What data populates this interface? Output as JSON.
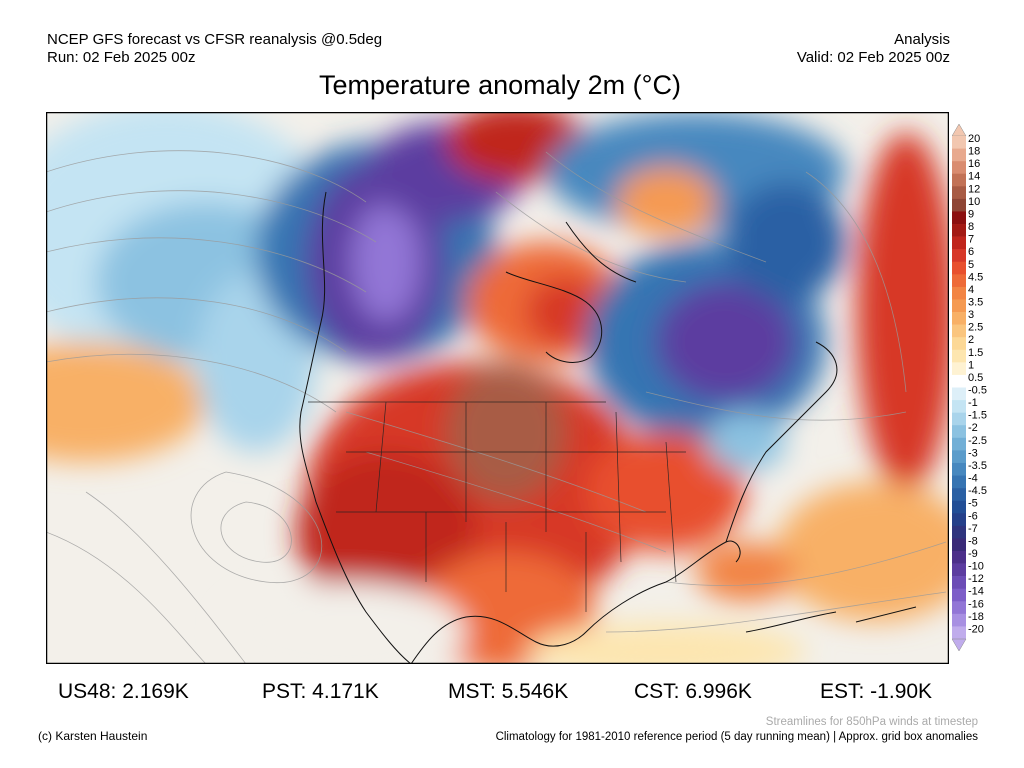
{
  "header": {
    "line1_left": "NCEP GFS forecast vs CFSR reanalysis @0.5deg",
    "line2_left": "Run: 02 Feb 2025 00z",
    "line1_right": "Analysis",
    "line2_right": "Valid: 02 Feb 2025 00z"
  },
  "title": "Temperature anomaly 2m (°C)",
  "colorbar": {
    "labels": [
      "20",
      "18",
      "16",
      "14",
      "12",
      "10",
      "9",
      "8",
      "7",
      "6",
      "5",
      "4.5",
      "4",
      "3.5",
      "3",
      "2.5",
      "2",
      "1.5",
      "1",
      "0.5",
      "-0.5",
      "-1",
      "-1.5",
      "-2",
      "-2.5",
      "-3",
      "-3.5",
      "-4",
      "-4.5",
      "-5",
      "-6",
      "-7",
      "-8",
      "-9",
      "-10",
      "-12",
      "-14",
      "-16",
      "-18",
      "-20"
    ],
    "colors": [
      "#f2c7b0",
      "#e8a98e",
      "#d98c70",
      "#c27256",
      "#a85b44",
      "#8f4535",
      "#8b1010",
      "#a31a14",
      "#c0251c",
      "#d73828",
      "#e8502e",
      "#ee6a38",
      "#f28444",
      "#f59a52",
      "#f8b066",
      "#fac57e",
      "#fcd896",
      "#fde6b0",
      "#fef2d2",
      "#ffffff",
      "#ddeff8",
      "#c4e4f3",
      "#a9d4eb",
      "#8cc2e1",
      "#72afd6",
      "#5b9ccb",
      "#4788bf",
      "#3674b2",
      "#2a60a4",
      "#224e96",
      "#25408a",
      "#2f347e",
      "#3a2a78",
      "#4c2f8a",
      "#5c3ca0",
      "#6c4cb6",
      "#7d5ec8",
      "#9276d6",
      "#a890e2",
      "#c0acec"
    ]
  },
  "stats": [
    {
      "label": "US48: 2.169K"
    },
    {
      "label": "PST: 4.171K"
    },
    {
      "label": "MST: 5.546K"
    },
    {
      "label": "CST: 6.996K"
    },
    {
      "label": "EST: -1.90K"
    }
  ],
  "footer": {
    "credit": "(c) Karsten Haustein",
    "streamlines": "Streamlines for 850hPa winds at timestep",
    "climatology": "Climatology for 1981-2010 reference period (5 day running mean) | Approx. grid box anomalies"
  }
}
